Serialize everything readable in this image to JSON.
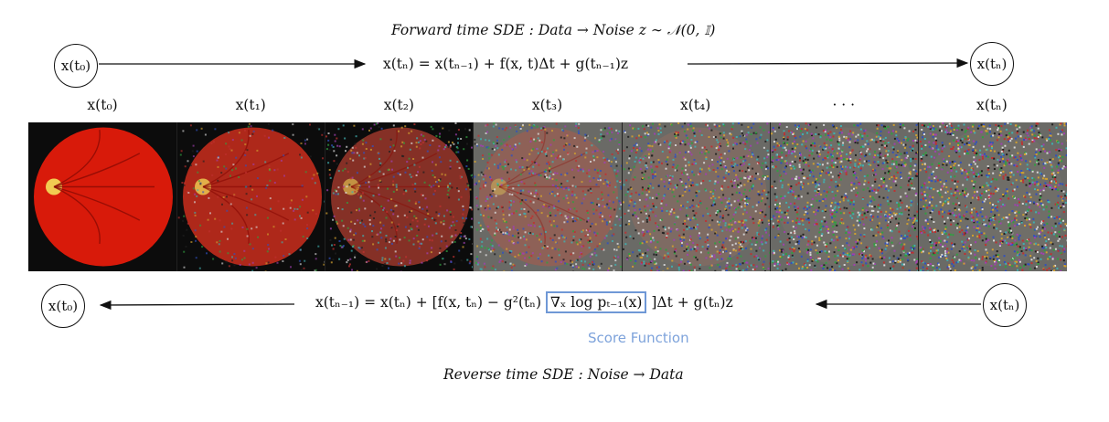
{
  "top": {
    "title": "Forward time SDE : Data → Noise   z ∼ 𝒩(0, 𝕀)",
    "equation": "x(tₙ) = x(tₙ₋₁) + f(x, t)Δt + g(tₙ₋₁)z",
    "left_node": "x(t₀)",
    "right_node": "x(tₙ)"
  },
  "steps": [
    "x(t₀)",
    "x(t₁)",
    "x(t₂)",
    "x(t₃)",
    "x(t₄)",
    "· · ·",
    "x(tₙ)"
  ],
  "noise_levels": [
    0,
    0.18,
    0.38,
    0.58,
    0.78,
    0.95,
    1.0
  ],
  "bottom": {
    "equation_left": "x(tₙ₋₁) = x(tₙ) + [f(x, tₙ) − g²(tₙ)",
    "score_term": "∇ₓ log pₜ₋₁(x)",
    "equation_right": "]Δt + g(tₙ)z",
    "score_label": "Score Function",
    "left_node": "x(t₀)",
    "right_node": "x(tₙ)",
    "title": "Reverse time SDE : Noise → Data"
  },
  "colors": {
    "score_box": "#6f98d6",
    "score_label": "#7ea3db",
    "fundus": "#d81a0a"
  }
}
